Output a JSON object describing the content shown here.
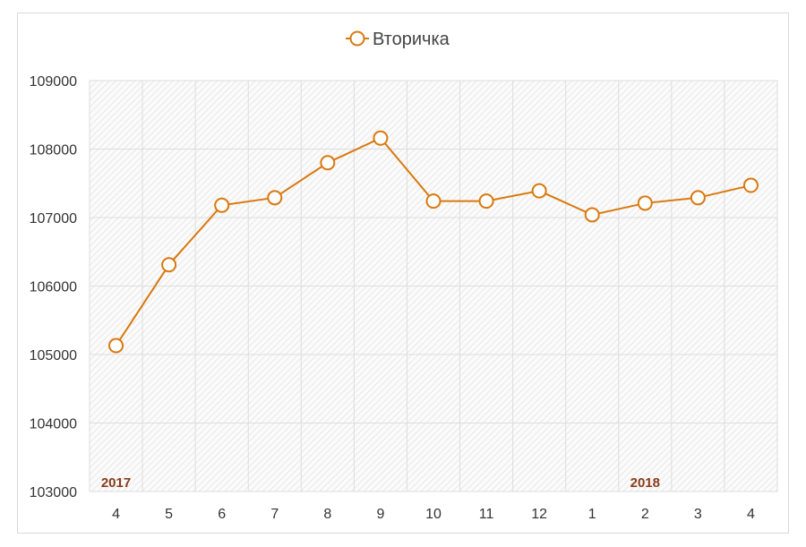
{
  "chart_data": {
    "type": "line",
    "title": "",
    "legend": {
      "position": "top",
      "series_name": "Вторичка"
    },
    "categories": [
      "4",
      "5",
      "6",
      "7",
      "8",
      "9",
      "10",
      "11",
      "12",
      "1",
      "2",
      "3",
      "4"
    ],
    "year_labels": [
      {
        "label": "2017",
        "category_index": 0
      },
      {
        "label": "2018",
        "category_index": 10
      }
    ],
    "series": [
      {
        "name": "Вторичка",
        "color": "#d9790f",
        "values": [
          105130,
          106310,
          107180,
          107290,
          107800,
          108160,
          107240,
          107240,
          107390,
          107040,
          107210,
          107290,
          107470
        ]
      }
    ],
    "ylim": [
      103000,
      109000
    ],
    "yticks": [
      103000,
      104000,
      105000,
      106000,
      107000,
      108000,
      109000
    ],
    "grid": true,
    "plot_background": "hatched light gray",
    "colors": {
      "line": "#d9790f",
      "year_label": "#8b3a1a",
      "grid": "#dddddd",
      "text": "#333333"
    }
  }
}
